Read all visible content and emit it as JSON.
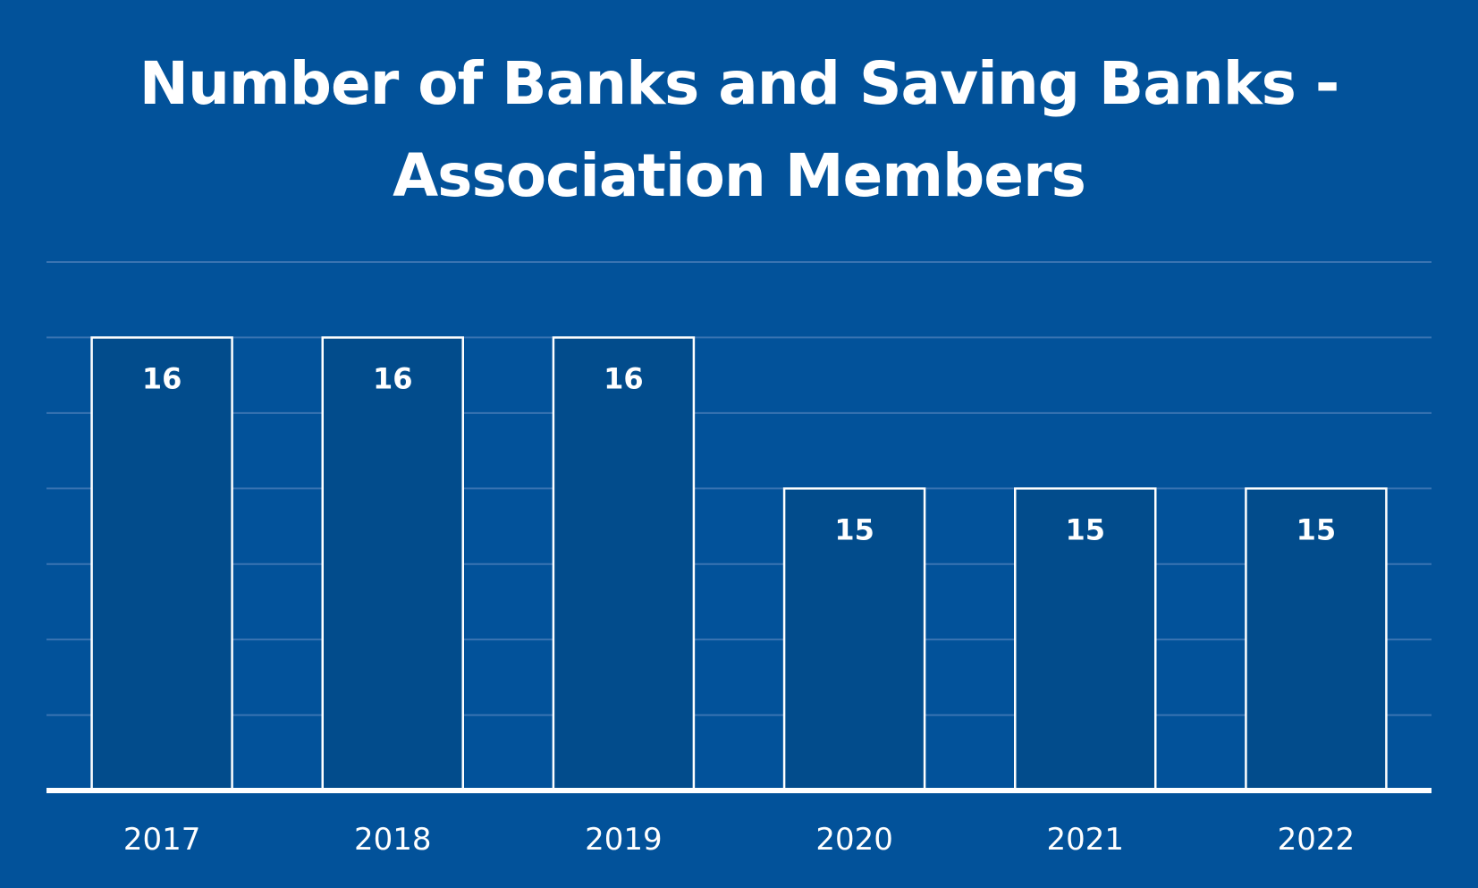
{
  "chart": {
    "title_line1": "Number of Banks and Saving Banks -",
    "title_line2": "Association Members"
  },
  "colors": {
    "background": "#02529a",
    "bar_fill": "#024c8c",
    "bar_stroke": "#ffffff",
    "gridline": "#3a74b2",
    "text": "#ffffff"
  },
  "chart_data": {
    "type": "bar",
    "title": "Number of Banks and Saving Banks - Association Members",
    "categories": [
      "2017",
      "2018",
      "2019",
      "2020",
      "2021",
      "2022"
    ],
    "values": [
      16,
      16,
      16,
      15,
      15,
      15
    ],
    "data_labels": [
      "16",
      "16",
      "16",
      "15",
      "15",
      "15"
    ],
    "xlabel": "",
    "ylabel": "",
    "ylim": [
      13,
      16.5
    ],
    "y_gridline_step": 0.5,
    "grid": true,
    "legend": "none"
  }
}
